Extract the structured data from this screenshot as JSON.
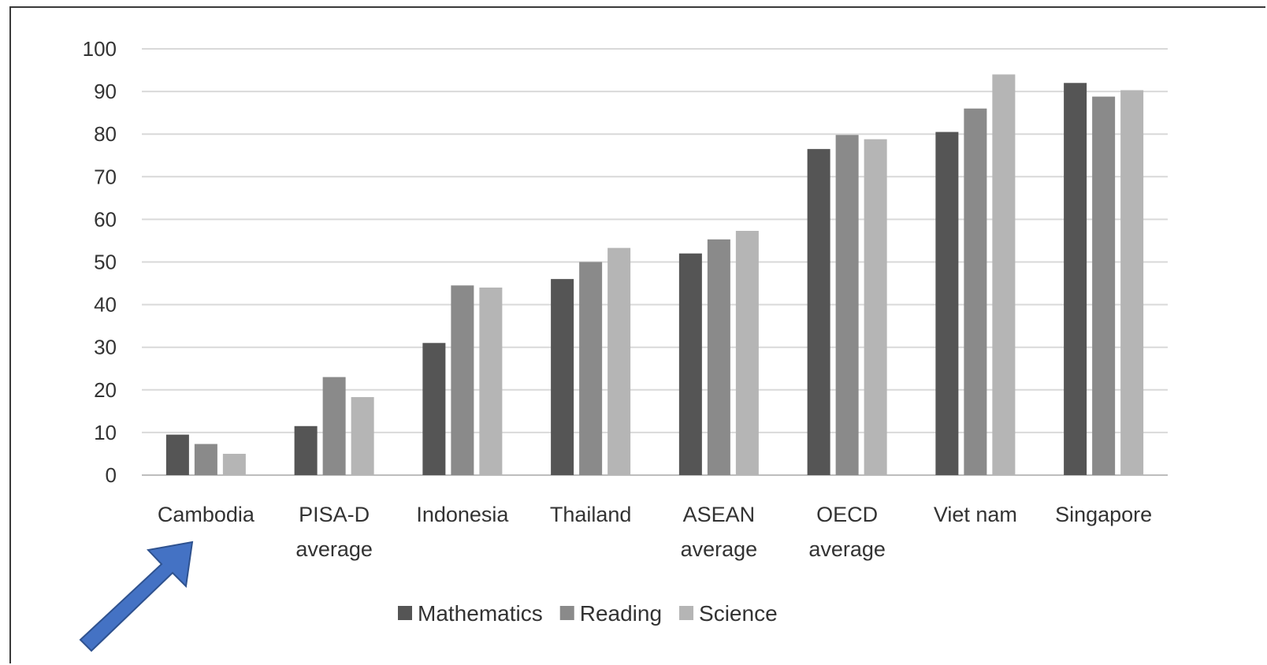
{
  "chart_data": {
    "type": "bar",
    "title": "",
    "xlabel": "",
    "ylabel": "",
    "ylim": [
      0,
      100
    ],
    "yticks": [
      0,
      10,
      20,
      30,
      40,
      50,
      60,
      70,
      80,
      90,
      100
    ],
    "grid": true,
    "legend_position": "bottom",
    "categories": [
      [
        "Cambodia"
      ],
      [
        "PISA-D",
        "average"
      ],
      [
        "Indonesia"
      ],
      [
        "Thailand"
      ],
      [
        "ASEAN",
        "average"
      ],
      [
        "OECD",
        "average"
      ],
      [
        "Viet nam"
      ],
      [
        "Singapore"
      ]
    ],
    "series": [
      {
        "name": "Mathematics",
        "color": "#555555",
        "values": [
          9.5,
          11.5,
          31,
          46,
          52,
          76.5,
          80.5,
          92
        ]
      },
      {
        "name": "Reading",
        "color": "#8a8a8a",
        "values": [
          7.3,
          23,
          44.5,
          50,
          55.3,
          79.8,
          86,
          88.8
        ]
      },
      {
        "name": "Science",
        "color": "#b5b5b5",
        "values": [
          5,
          18.3,
          44,
          53.3,
          57.3,
          78.8,
          94,
          90.3
        ]
      }
    ]
  },
  "annotation": {
    "arrow_icon": "up-right-arrow-icon",
    "arrow_color": "#4472C4"
  }
}
